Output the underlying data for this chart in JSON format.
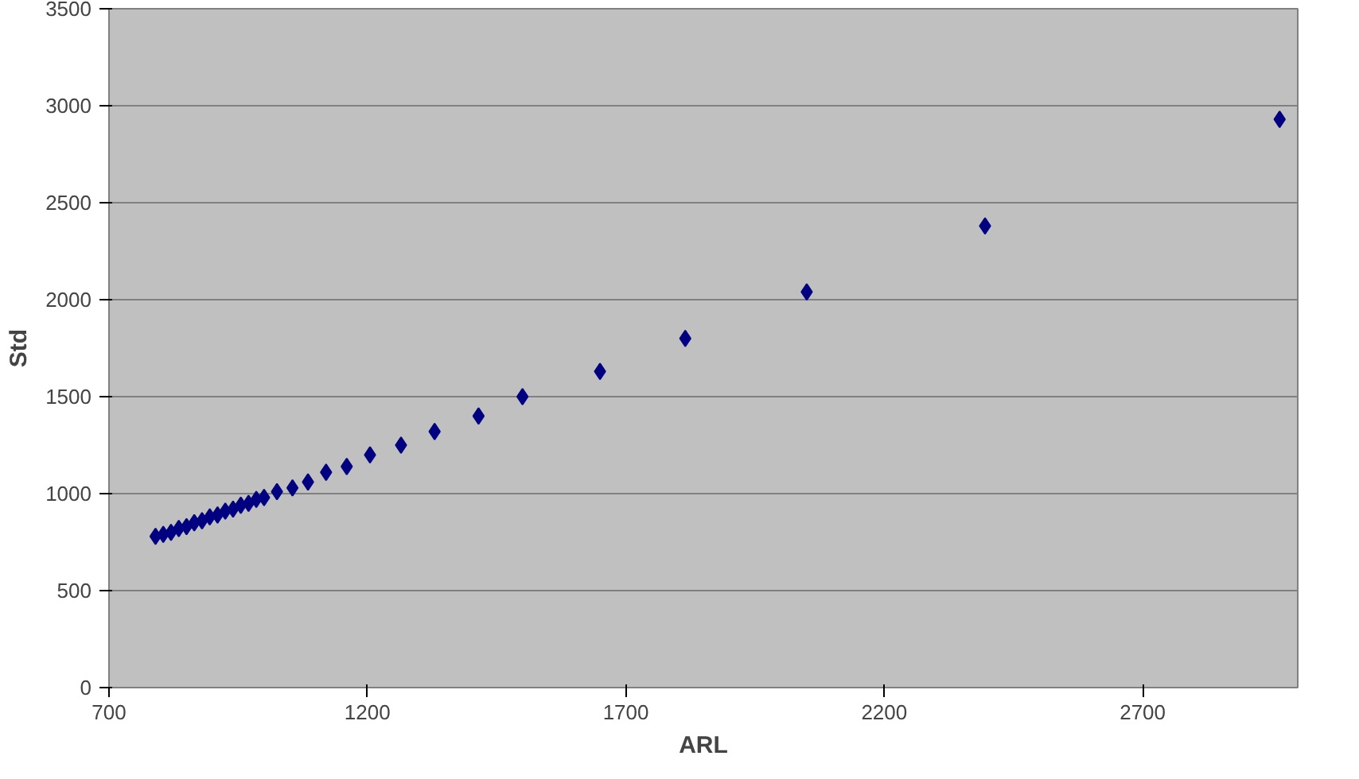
{
  "chart_data": {
    "type": "scatter",
    "xlabel": "ARL",
    "ylabel": "Std",
    "xlim": [
      700,
      3000
    ],
    "xticks": [
      700,
      1200,
      1700,
      2200,
      2700
    ],
    "ylim": [
      0,
      3500
    ],
    "yticks": [
      0,
      500,
      1000,
      1500,
      2000,
      2500,
      3000,
      3500
    ],
    "grid": "y",
    "marker": "diamond",
    "series": [
      {
        "color": "#000080",
        "x": [
          790,
          805,
          820,
          835,
          850,
          865,
          880,
          895,
          910,
          925,
          940,
          955,
          970,
          985,
          1000,
          1025,
          1055,
          1085,
          1120,
          1160,
          1205,
          1265,
          1330,
          1415,
          1500,
          1650,
          1815,
          2050,
          2395,
          2965
        ],
        "values": [
          780,
          790,
          800,
          820,
          830,
          850,
          860,
          880,
          890,
          910,
          920,
          940,
          950,
          970,
          980,
          1010,
          1030,
          1060,
          1110,
          1140,
          1200,
          1250,
          1320,
          1400,
          1500,
          1630,
          1800,
          2040,
          2380,
          2930
        ]
      }
    ]
  }
}
